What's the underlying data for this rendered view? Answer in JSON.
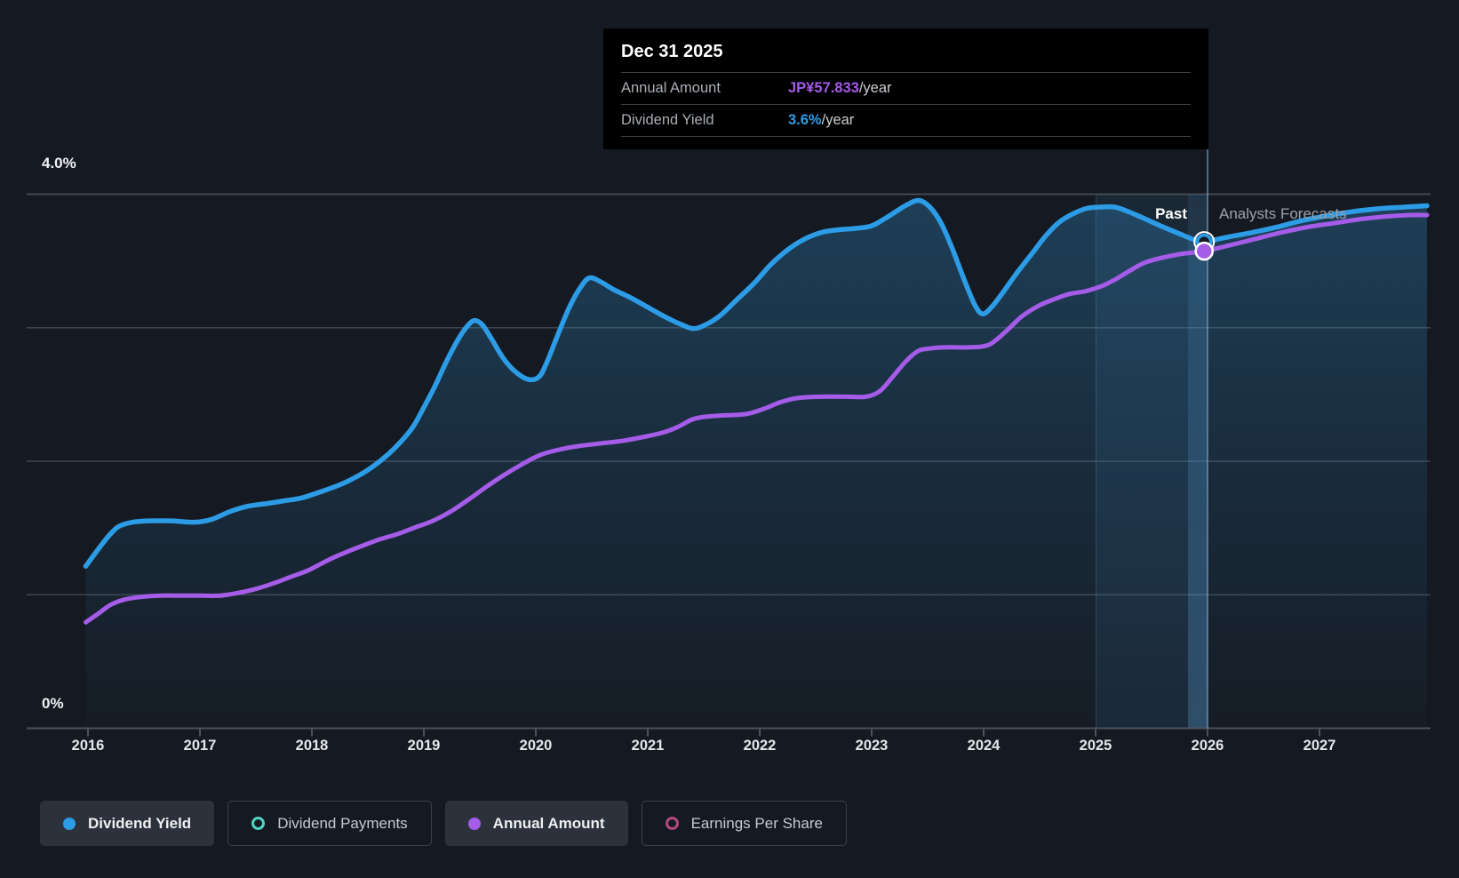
{
  "colors": {
    "background": "#151a22",
    "dividend_yield_line": "#2d9ce7",
    "annual_amount_line": "#a55ce8",
    "dividend_payments_accent": "#4fd4c4",
    "earnings_per_share_accent": "#b4487f",
    "gridline": "#3e444e",
    "axis_line": "#4c525c",
    "tooltip_background": "#000000",
    "highlight_band": "rgba(80,160,220,0.10)",
    "crosshair": "rgba(125,175,215,0.55)"
  },
  "tooltip": {
    "date": "Dec 31 2025",
    "rows": [
      {
        "label": "Annual Amount",
        "value": "JP¥57.833",
        "suffix": "/year"
      },
      {
        "label": "Dividend Yield",
        "value": "3.6%",
        "suffix": "/year"
      }
    ]
  },
  "annotations": {
    "past": "Past",
    "forecast": "Analysts Forecasts"
  },
  "axes": {
    "y_top_label": "4.0%",
    "y_bottom_label": "0%",
    "years": [
      "2016",
      "2017",
      "2018",
      "2019",
      "2020",
      "2021",
      "2022",
      "2023",
      "2024",
      "2025",
      "2026",
      "2027"
    ]
  },
  "legend": [
    {
      "label": "Dividend Yield",
      "style": "filled",
      "active": true,
      "color": "#2d9ce7"
    },
    {
      "label": "Dividend Payments",
      "style": "outline",
      "active": false,
      "color": "#4fd4c4"
    },
    {
      "label": "Annual Amount",
      "style": "filled",
      "active": true,
      "color": "#a55ce8"
    },
    {
      "label": "Earnings Per Share",
      "style": "outline",
      "active": false,
      "color": "#b4487f"
    }
  ],
  "chart_data": {
    "type": "line",
    "title": "Dividend yield and annual dividend amount — history and analyst forecasts",
    "x_axis": {
      "ticks": [
        2016,
        2017,
        2018,
        2019,
        2020,
        2021,
        2022,
        2023,
        2024,
        2025,
        2026,
        2027
      ],
      "range": [
        2015.95,
        2028.0
      ]
    },
    "y_axis": {
      "label_top": "4.0%",
      "label_bottom": "0%",
      "range_percent": [
        0,
        4.27
      ],
      "gridlines_percent": [
        1,
        2,
        3,
        4
      ],
      "grid": true
    },
    "divider": {
      "x_year": 2026.0,
      "past_label": "Past",
      "forecast_label": "Analysts Forecasts"
    },
    "highlight_band_years": [
      2025.0,
      2026.0
    ],
    "legend_position": "bottom",
    "series": [
      {
        "name": "Dividend Yield",
        "unit": "% (left axis)",
        "color": "#2d9ce7",
        "area_fill": true,
        "points": [
          [
            2015.98,
            1.21
          ],
          [
            2016.05,
            1.29
          ],
          [
            2016.13,
            1.38
          ],
          [
            2016.21,
            1.46
          ],
          [
            2016.28,
            1.51
          ],
          [
            2016.4,
            1.54
          ],
          [
            2016.55,
            1.55
          ],
          [
            2016.75,
            1.55
          ],
          [
            2016.95,
            1.54
          ],
          [
            2017.1,
            1.56
          ],
          [
            2017.27,
            1.62
          ],
          [
            2017.43,
            1.66
          ],
          [
            2017.6,
            1.68
          ],
          [
            2017.75,
            1.7
          ],
          [
            2017.9,
            1.72
          ],
          [
            2018.05,
            1.76
          ],
          [
            2018.25,
            1.82
          ],
          [
            2018.42,
            1.89
          ],
          [
            2018.55,
            1.96
          ],
          [
            2018.67,
            2.04
          ],
          [
            2018.78,
            2.13
          ],
          [
            2018.9,
            2.25
          ],
          [
            2019.0,
            2.4
          ],
          [
            2019.1,
            2.56
          ],
          [
            2019.2,
            2.74
          ],
          [
            2019.3,
            2.9
          ],
          [
            2019.38,
            3.0
          ],
          [
            2019.45,
            3.05
          ],
          [
            2019.52,
            3.02
          ],
          [
            2019.6,
            2.92
          ],
          [
            2019.7,
            2.78
          ],
          [
            2019.8,
            2.68
          ],
          [
            2019.93,
            2.61
          ],
          [
            2020.03,
            2.63
          ],
          [
            2020.1,
            2.74
          ],
          [
            2020.2,
            2.95
          ],
          [
            2020.3,
            3.15
          ],
          [
            2020.4,
            3.3
          ],
          [
            2020.48,
            3.37
          ],
          [
            2020.58,
            3.34
          ],
          [
            2020.7,
            3.28
          ],
          [
            2020.85,
            3.22
          ],
          [
            2021.0,
            3.15
          ],
          [
            2021.15,
            3.08
          ],
          [
            2021.3,
            3.02
          ],
          [
            2021.41,
            2.99
          ],
          [
            2021.52,
            3.02
          ],
          [
            2021.65,
            3.09
          ],
          [
            2021.8,
            3.21
          ],
          [
            2021.95,
            3.33
          ],
          [
            2022.1,
            3.47
          ],
          [
            2022.25,
            3.58
          ],
          [
            2022.4,
            3.66
          ],
          [
            2022.55,
            3.71
          ],
          [
            2022.7,
            3.73
          ],
          [
            2022.85,
            3.74
          ],
          [
            2023.0,
            3.76
          ],
          [
            2023.15,
            3.83
          ],
          [
            2023.3,
            3.91
          ],
          [
            2023.42,
            3.95
          ],
          [
            2023.52,
            3.9
          ],
          [
            2023.62,
            3.78
          ],
          [
            2023.72,
            3.59
          ],
          [
            2023.82,
            3.37
          ],
          [
            2023.92,
            3.17
          ],
          [
            2023.99,
            3.1
          ],
          [
            2024.07,
            3.15
          ],
          [
            2024.18,
            3.27
          ],
          [
            2024.3,
            3.41
          ],
          [
            2024.44,
            3.56
          ],
          [
            2024.56,
            3.69
          ],
          [
            2024.68,
            3.79
          ],
          [
            2024.8,
            3.85
          ],
          [
            2024.92,
            3.89
          ],
          [
            2025.05,
            3.9
          ],
          [
            2025.17,
            3.9
          ],
          [
            2025.28,
            3.87
          ],
          [
            2025.42,
            3.82
          ],
          [
            2025.58,
            3.76
          ],
          [
            2025.75,
            3.7
          ],
          [
            2025.87,
            3.66
          ],
          [
            2025.97,
            3.64
          ],
          [
            2026.15,
            3.67
          ],
          [
            2026.4,
            3.71
          ],
          [
            2026.62,
            3.75
          ],
          [
            2026.85,
            3.8
          ],
          [
            2027.1,
            3.84
          ],
          [
            2027.33,
            3.87
          ],
          [
            2027.56,
            3.89
          ],
          [
            2027.76,
            3.9
          ],
          [
            2027.96,
            3.91
          ]
        ]
      },
      {
        "name": "Annual Amount",
        "unit": "JP¥ per share (secondary scale; point values below are left-axis-equivalent %)",
        "color": "#a55ce8",
        "area_fill": false,
        "known_value": {
          "date": "Dec 31 2025",
          "value": "JP¥57.833/year"
        },
        "points": [
          [
            2015.98,
            0.79
          ],
          [
            2016.1,
            0.86
          ],
          [
            2016.2,
            0.92
          ],
          [
            2016.32,
            0.96
          ],
          [
            2016.47,
            0.98
          ],
          [
            2016.65,
            0.99
          ],
          [
            2016.85,
            0.99
          ],
          [
            2017.02,
            0.99
          ],
          [
            2017.18,
            0.99
          ],
          [
            2017.34,
            1.01
          ],
          [
            2017.5,
            1.04
          ],
          [
            2017.65,
            1.08
          ],
          [
            2017.81,
            1.13
          ],
          [
            2017.97,
            1.18
          ],
          [
            2018.13,
            1.25
          ],
          [
            2018.29,
            1.31
          ],
          [
            2018.44,
            1.36
          ],
          [
            2018.6,
            1.41
          ],
          [
            2018.76,
            1.45
          ],
          [
            2018.92,
            1.5
          ],
          [
            2019.08,
            1.55
          ],
          [
            2019.24,
            1.62
          ],
          [
            2019.4,
            1.71
          ],
          [
            2019.55,
            1.8
          ],
          [
            2019.71,
            1.89
          ],
          [
            2019.87,
            1.97
          ],
          [
            2020.03,
            2.04
          ],
          [
            2020.19,
            2.08
          ],
          [
            2020.38,
            2.11
          ],
          [
            2020.58,
            2.13
          ],
          [
            2020.78,
            2.15
          ],
          [
            2020.97,
            2.18
          ],
          [
            2021.13,
            2.21
          ],
          [
            2021.26,
            2.25
          ],
          [
            2021.4,
            2.31
          ],
          [
            2021.52,
            2.33
          ],
          [
            2021.68,
            2.34
          ],
          [
            2021.88,
            2.35
          ],
          [
            2022.04,
            2.39
          ],
          [
            2022.19,
            2.44
          ],
          [
            2022.34,
            2.47
          ],
          [
            2022.55,
            2.48
          ],
          [
            2022.77,
            2.48
          ],
          [
            2022.95,
            2.48
          ],
          [
            2023.07,
            2.52
          ],
          [
            2023.18,
            2.62
          ],
          [
            2023.3,
            2.74
          ],
          [
            2023.41,
            2.82
          ],
          [
            2023.51,
            2.84
          ],
          [
            2023.68,
            2.85
          ],
          [
            2023.88,
            2.85
          ],
          [
            2024.05,
            2.87
          ],
          [
            2024.2,
            2.97
          ],
          [
            2024.34,
            3.08
          ],
          [
            2024.49,
            3.16
          ],
          [
            2024.63,
            3.21
          ],
          [
            2024.77,
            3.25
          ],
          [
            2024.91,
            3.27
          ],
          [
            2025.06,
            3.31
          ],
          [
            2025.18,
            3.36
          ],
          [
            2025.3,
            3.42
          ],
          [
            2025.43,
            3.48
          ],
          [
            2025.59,
            3.52
          ],
          [
            2025.77,
            3.55
          ],
          [
            2025.97,
            3.57
          ],
          [
            2026.18,
            3.61
          ],
          [
            2026.42,
            3.66
          ],
          [
            2026.66,
            3.71
          ],
          [
            2026.89,
            3.75
          ],
          [
            2027.13,
            3.78
          ],
          [
            2027.37,
            3.81
          ],
          [
            2027.6,
            3.83
          ],
          [
            2027.8,
            3.84
          ],
          [
            2027.96,
            3.84
          ]
        ]
      }
    ],
    "markers": [
      {
        "series": "Dividend Yield",
        "x_year": 2025.97,
        "y": 3.64,
        "style": "open"
      },
      {
        "series": "Annual Amount",
        "x_year": 2025.97,
        "y": 3.57,
        "style": "filled"
      }
    ]
  }
}
